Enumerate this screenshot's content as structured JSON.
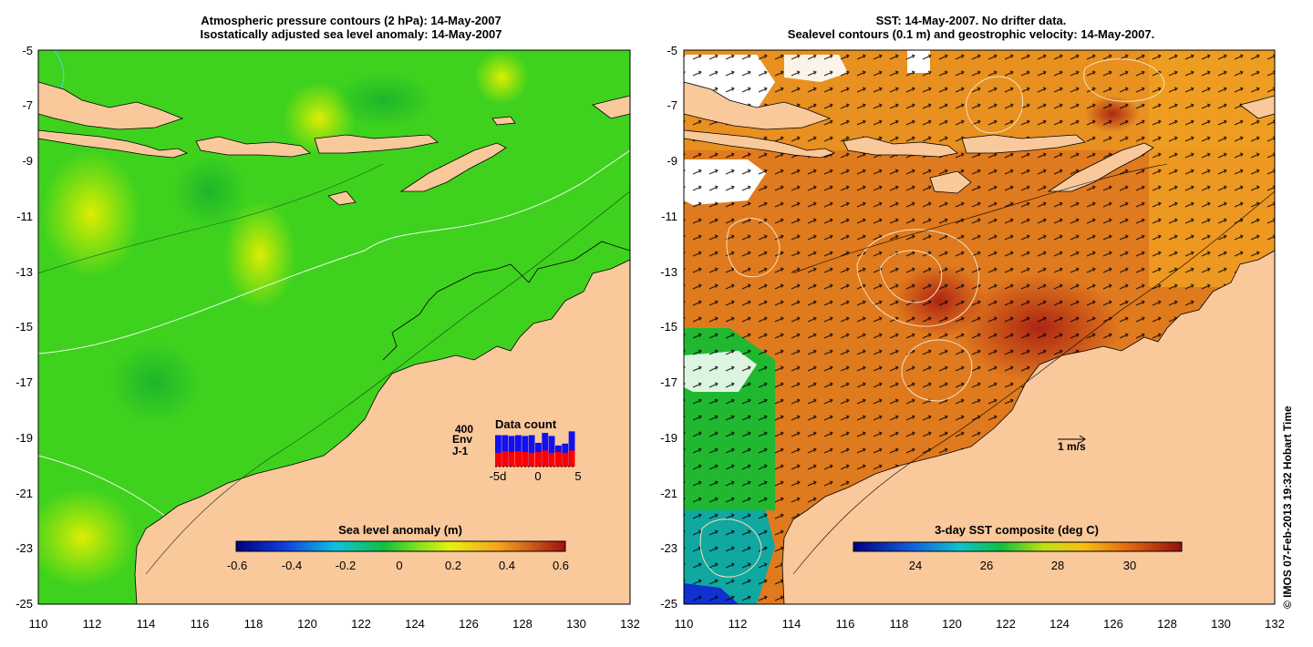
{
  "left_panel": {
    "title_line1": "Atmospheric pressure contours (2 hPa): 14-May-2007",
    "title_line2": "Isostatically adjusted sea level anomaly: 14-May-2007",
    "x_ticks": [
      "110",
      "112",
      "114",
      "116",
      "118",
      "120",
      "122",
      "124",
      "126",
      "128",
      "130",
      "132"
    ],
    "y_ticks": [
      "-5",
      "-7",
      "-9",
      "-11",
      "-13",
      "-15",
      "-17",
      "-19",
      "-21",
      "-23",
      "-25"
    ],
    "colorbar": {
      "title": "Sea level anomaly (m)",
      "ticks": [
        "-0.6",
        "-0.4",
        "-0.2",
        "0",
        "0.2",
        "0.4",
        "0.6"
      ]
    },
    "inset": {
      "title": "Data count",
      "max_label": "400",
      "series1_label": "Env",
      "series2_label": "J-1",
      "x_ticks": [
        "-5d",
        "0",
        "5"
      ],
      "env_heights": [
        0.82,
        0.82,
        0.8,
        0.82,
        0.8,
        0.82,
        0.62,
        0.88,
        0.8,
        0.55,
        0.6,
        0.92
      ],
      "j1_heights": [
        0.36,
        0.4,
        0.38,
        0.4,
        0.38,
        0.36,
        0.38,
        0.42,
        0.36,
        0.38,
        0.36,
        0.42
      ],
      "env_color": "#1010f0",
      "j1_color": "#ff0000"
    }
  },
  "right_panel": {
    "title_line1": "SST: 14-May-2007. No drifter data.",
    "title_line2": "Sealevel contours (0.1 m) and geostrophic velocity: 14-May-2007.",
    "x_ticks": [
      "110",
      "112",
      "114",
      "116",
      "118",
      "120",
      "122",
      "124",
      "126",
      "128",
      "130",
      "132"
    ],
    "y_ticks": [
      "-5",
      "-7",
      "-9",
      "-11",
      "-13",
      "-15",
      "-17",
      "-19",
      "-21",
      "-23",
      "-25"
    ],
    "colorbar": {
      "title": "3-day SST composite (deg C)",
      "ticks": [
        "24",
        "26",
        "28",
        "30"
      ]
    },
    "velocity_scale_label": "1 m/s"
  },
  "credit": "© IMOS 07-Feb-2013 19:32 Hobart Time",
  "colors": {
    "land": "#f9c89b",
    "sla_bg": "#3ed21e",
    "sst_bg": "#e07a1e"
  }
}
